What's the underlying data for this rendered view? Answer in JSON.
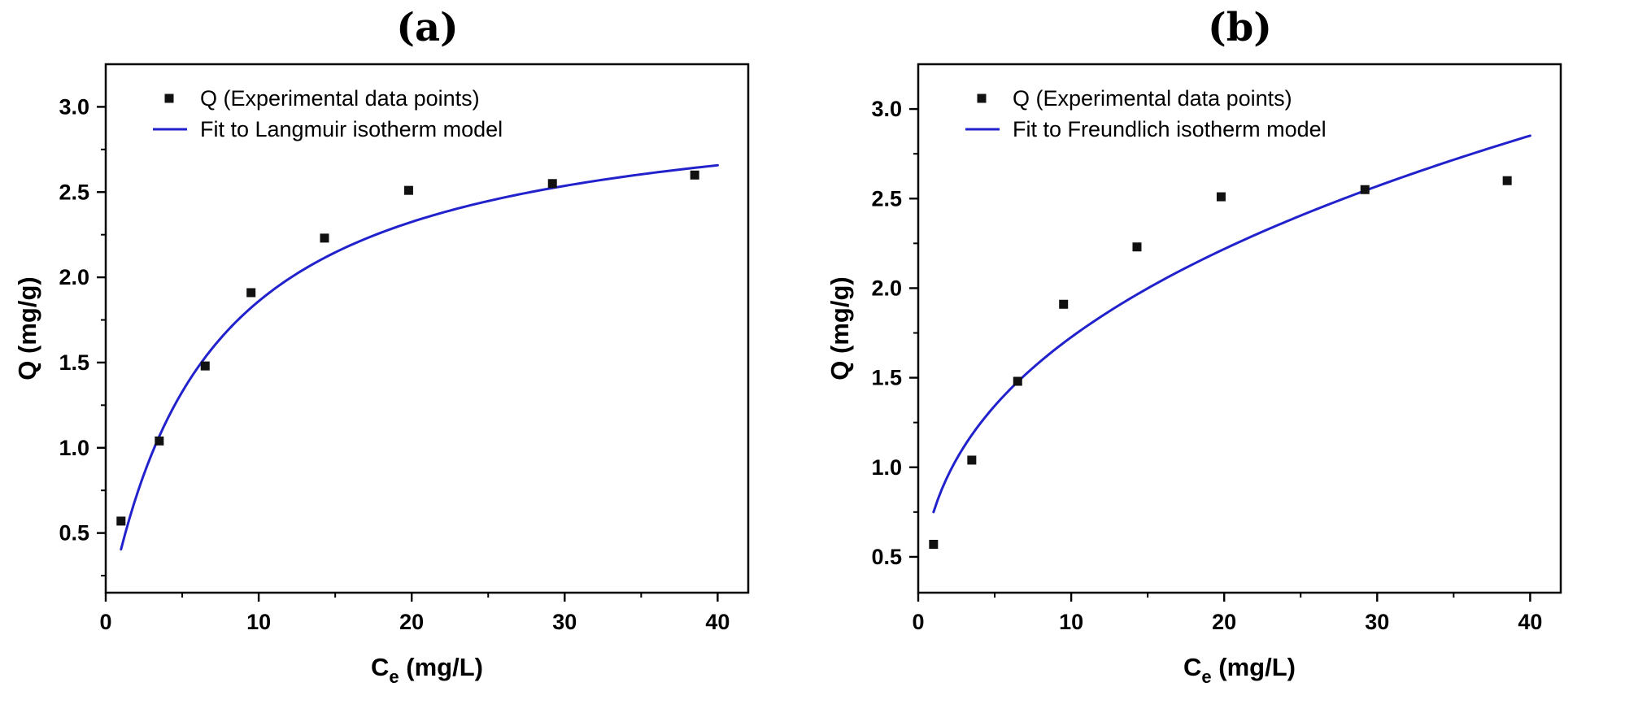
{
  "figure": {
    "background_color": "#ffffff",
    "panel_count": 2
  },
  "chart_data": [
    {
      "type": "scatter",
      "panel": "(a)",
      "title": "(a)",
      "xlabel": {
        "base": "C",
        "sub": "e",
        "units": " (mg/L)"
      },
      "ylabel": "Q (mg/g)",
      "xlim": [
        0,
        42
      ],
      "ylim": [
        0.15,
        3.25
      ],
      "xticks": [
        0,
        10,
        20,
        30,
        40
      ],
      "yticks": [
        0.5,
        1.0,
        1.5,
        2.0,
        2.5,
        3.0
      ],
      "x_minor_step": 5,
      "y_minor_step": 0.25,
      "axis_color": "#000000",
      "grid": "off",
      "legend_position": "top-left",
      "series": [
        {
          "name": "Q (Experimental data points)",
          "type": "scatter",
          "marker": "square",
          "color": "#111111",
          "x": [
            1.0,
            3.5,
            6.5,
            9.5,
            14.3,
            19.8,
            29.2,
            38.5
          ],
          "y": [
            0.57,
            1.04,
            1.48,
            1.91,
            2.23,
            2.51,
            2.55,
            2.6
          ]
        },
        {
          "name": "Fit to Langmuir isotherm model",
          "type": "line",
          "color": "#2222cc",
          "model": {
            "kind": "langmuir",
            "qmax": 3.1,
            "k": 0.15
          },
          "x_range": [
            1.0,
            40.0
          ]
        }
      ]
    },
    {
      "type": "scatter",
      "panel": "(b)",
      "title": "(b)",
      "xlabel": {
        "base": "C",
        "sub": "e",
        "units": " (mg/L)"
      },
      "ylabel": "Q (mg/g)",
      "xlim": [
        0,
        42
      ],
      "ylim": [
        0.3,
        3.25
      ],
      "xticks": [
        0,
        10,
        20,
        30,
        40
      ],
      "yticks": [
        0.5,
        1.0,
        1.5,
        2.0,
        2.5,
        3.0
      ],
      "x_minor_step": 5,
      "y_minor_step": 0.25,
      "axis_color": "#000000",
      "grid": "off",
      "legend_position": "top-left",
      "series": [
        {
          "name": "Q (Experimental data points)",
          "type": "scatter",
          "marker": "square",
          "color": "#111111",
          "x": [
            1.0,
            3.5,
            6.5,
            9.5,
            14.3,
            19.8,
            29.2,
            38.5
          ],
          "y": [
            0.57,
            1.04,
            1.48,
            1.91,
            2.23,
            2.51,
            2.55,
            2.6
          ]
        },
        {
          "name": "Fit to Freundlich isotherm model",
          "type": "line",
          "color": "#2222cc",
          "model": {
            "kind": "freundlich",
            "kf": 0.75,
            "m": 0.362
          },
          "x_range": [
            1.0,
            40.0
          ]
        }
      ]
    }
  ]
}
